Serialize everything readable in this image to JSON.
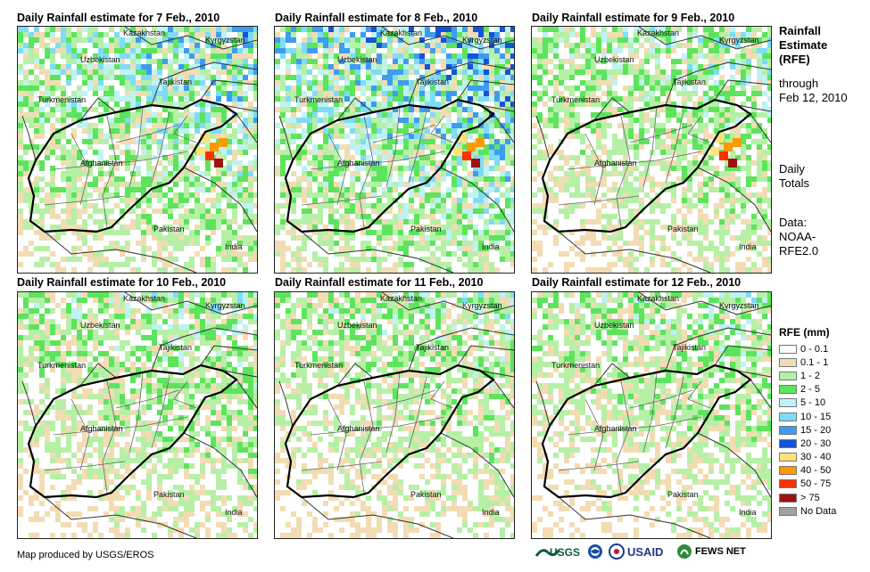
{
  "panels": [
    {
      "title": "Daily Rainfall estimate for 7 Feb., 2010",
      "intensity": 0.55,
      "peak": true
    },
    {
      "title": "Daily Rainfall estimate for 8 Feb., 2010",
      "intensity": 0.8,
      "peak": true
    },
    {
      "title": "Daily Rainfall estimate for 9 Feb., 2010",
      "intensity": 0.3,
      "peak": true
    },
    {
      "title": "Daily Rainfall estimate for 10 Feb., 2010",
      "intensity": 0.25,
      "peak": false
    },
    {
      "title": "Daily Rainfall estimate for 11 Feb., 2010",
      "intensity": 0.2,
      "peak": false
    },
    {
      "title": "Daily Rainfall estimate for 12 Feb., 2010",
      "intensity": 0.2,
      "peak": false
    }
  ],
  "place_labels": {
    "kazakhstan": "Kazakhstan",
    "kyrgyzstan": "Kyrgyzstan",
    "uzbekistan": "Uzbekistan",
    "tajikistan": "Tajikistan",
    "turkmenistan": "Turkmenistan",
    "afghanistan": "Afghanistan",
    "pakistan": "Pakistan",
    "india": "India"
  },
  "side": {
    "title_lines": [
      "Rainfall",
      "Estimate",
      "(RFE)"
    ],
    "through": [
      "through",
      "Feb 12, 2010"
    ],
    "totals": [
      "Daily",
      "Totals"
    ],
    "data": [
      "Data:",
      "NOAA-",
      "RFE2.0"
    ]
  },
  "legend": {
    "title": "RFE (mm)",
    "items": [
      {
        "label": "0 - 0.1",
        "color": "#ffffff"
      },
      {
        "label": "0.1 - 1",
        "color": "#f2dcb4"
      },
      {
        "label": "1 - 2",
        "color": "#b6f0a6"
      },
      {
        "label": "2 - 5",
        "color": "#5de45d"
      },
      {
        "label": "5 - 10",
        "color": "#bff3f3"
      },
      {
        "label": "10 - 15",
        "color": "#7fdcf5"
      },
      {
        "label": "15 - 20",
        "color": "#3e9cf0"
      },
      {
        "label": "20 - 30",
        "color": "#1553d8"
      },
      {
        "label": "30 - 40",
        "color": "#ffe27a"
      },
      {
        "label": "40 - 50",
        "color": "#ff9900"
      },
      {
        "label": "50 - 75",
        "color": "#ff3000"
      },
      {
        "label": "> 75",
        "color": "#a01010"
      },
      {
        "label": "No Data",
        "color": "#a0a0a0"
      }
    ]
  },
  "footer": {
    "credit": "Map produced by USGS/EROS",
    "logos": [
      "USGS",
      "NOAA",
      "USAID",
      "FEWS NET"
    ]
  }
}
